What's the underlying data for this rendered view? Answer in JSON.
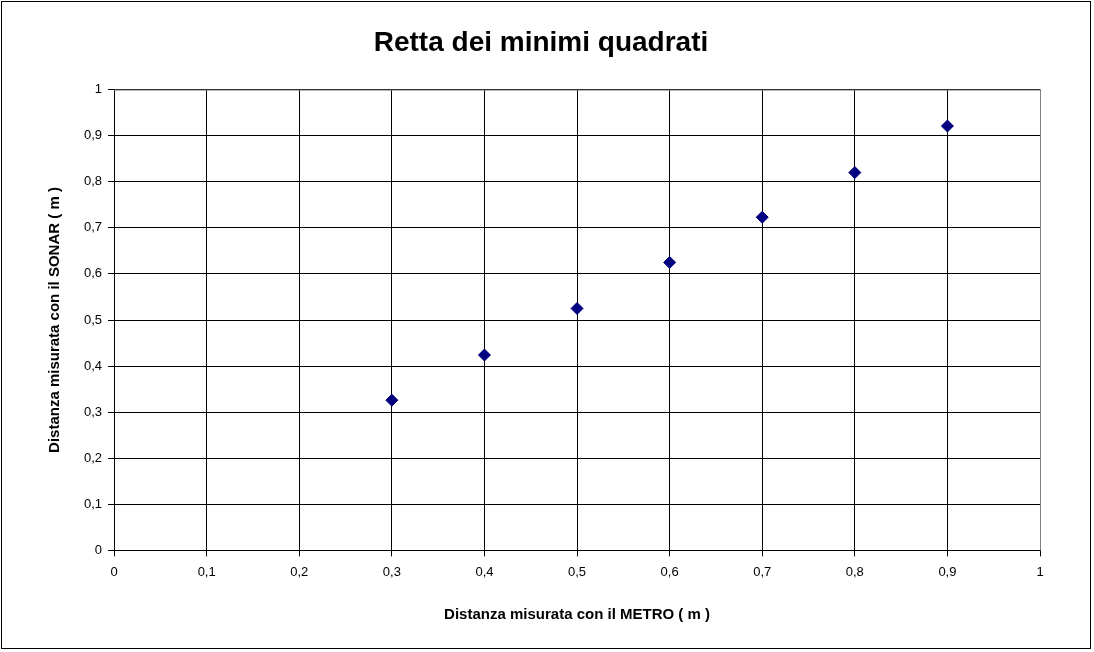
{
  "chart_data": {
    "type": "scatter",
    "title": "Retta dei minimi quadrati",
    "xlabel": "Distanza misurata con il METRO ( m )",
    "ylabel": "Distanza misurata con il SONAR ( m )",
    "x": [
      0.3,
      0.4,
      0.5,
      0.6,
      0.7,
      0.8,
      0.9
    ],
    "series": [
      {
        "color": "#000080",
        "values": [
          0.326,
          0.424,
          0.525,
          0.625,
          0.723,
          0.82,
          0.921
        ]
      }
    ],
    "xlim": [
      0,
      1
    ],
    "ylim": [
      0,
      1
    ],
    "xticks": [
      0,
      {
        "value": 0.1,
        "label": "0,1"
      },
      {
        "value": 0.2,
        "label": "0,2"
      },
      {
        "value": 0.3,
        "label": "0,3"
      },
      {
        "value": 0.4,
        "label": "0,4"
      },
      {
        "value": 0.5,
        "label": "0,5"
      },
      {
        "value": 0.6,
        "label": "0,6"
      },
      {
        "value": 0.7,
        "label": "0,7"
      },
      {
        "value": 0.8,
        "label": "0,8"
      },
      {
        "value": 0.9,
        "label": "0,9"
      },
      1
    ],
    "yticks": [
      0,
      {
        "value": 0.1,
        "label": "0,1"
      },
      {
        "value": 0.2,
        "label": "0,2"
      },
      {
        "value": 0.3,
        "label": "0,3"
      },
      {
        "value": 0.4,
        "label": "0,4"
      },
      {
        "value": 0.5,
        "label": "0,5"
      },
      {
        "value": 0.6,
        "label": "0,6"
      },
      {
        "value": 0.7,
        "label": "0,7"
      },
      {
        "value": 0.8,
        "label": "0,8"
      },
      {
        "value": 0.9,
        "label": "0,9"
      },
      1
    ],
    "grid": true,
    "legend": false,
    "marker": "diamond"
  }
}
